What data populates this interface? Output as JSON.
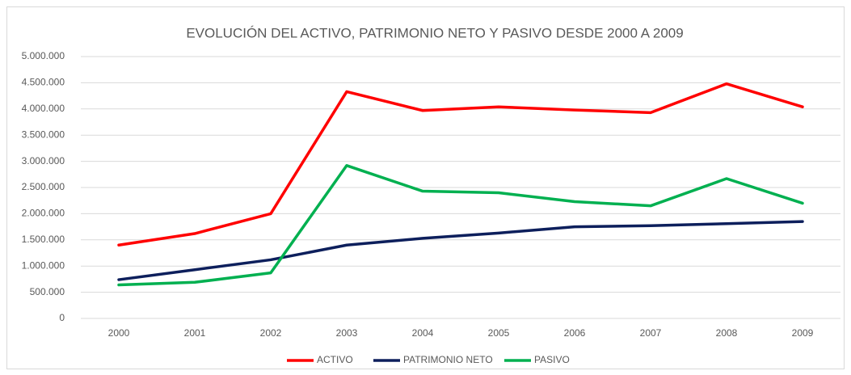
{
  "chart_data": {
    "type": "line",
    "title": "EVOLUCIÓN DEL ACTIVO, PATRIMONIO NETO Y PASIVO DESDE 2000 A 2009",
    "categories": [
      "2000",
      "2001",
      "2002",
      "2003",
      "2004",
      "2005",
      "2006",
      "2007",
      "2008",
      "2009"
    ],
    "series": [
      {
        "name": "ACTIVO",
        "color": "#ff0000",
        "values": [
          1400000,
          1620000,
          2000000,
          4330000,
          3970000,
          4040000,
          3980000,
          3930000,
          4480000,
          4040000
        ]
      },
      {
        "name": "PATRIMONIO NETO",
        "color": "#0d1f5c",
        "values": [
          740000,
          930000,
          1120000,
          1400000,
          1530000,
          1630000,
          1750000,
          1770000,
          1810000,
          1850000
        ]
      },
      {
        "name": "PASIVO",
        "color": "#00b050",
        "values": [
          640000,
          690000,
          870000,
          2920000,
          2430000,
          2400000,
          2230000,
          2150000,
          2670000,
          2200000
        ]
      }
    ],
    "ylim": [
      0,
      5000000
    ],
    "yticks": [
      0,
      {
        "value": 500000,
        "label": "500.000"
      },
      {
        "value": 1000000,
        "label": "1.000.000"
      },
      {
        "value": 1500000,
        "label": "1.500.000"
      },
      {
        "value": 2000000,
        "label": "2.000.000"
      },
      {
        "value": 2500000,
        "label": "2.500.000"
      },
      {
        "value": 3000000,
        "label": "3.000.000"
      },
      {
        "value": 3500000,
        "label": "3.500.000"
      },
      {
        "value": 4000000,
        "label": "4.000.000"
      },
      {
        "value": 4500000,
        "label": "4.500.000"
      },
      {
        "value": 5000000,
        "label": "5.000.000"
      }
    ],
    "grid": true,
    "legend": "bottom"
  }
}
